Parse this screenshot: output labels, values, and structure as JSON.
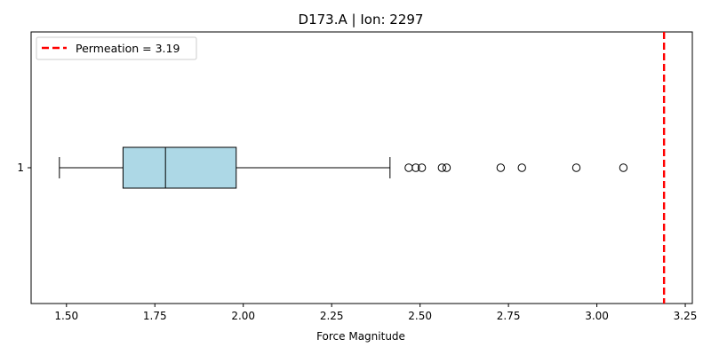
{
  "chart_data": {
    "type": "boxplot",
    "orientation": "horizontal",
    "title": "D173.A | Ion: 2297",
    "xlabel": "Force Magnitude",
    "ylabel": "",
    "xlim": [
      1.4,
      3.27
    ],
    "xticks": [
      1.5,
      1.75,
      2.0,
      2.25,
      2.5,
      2.75,
      3.0,
      3.25
    ],
    "xtick_labels": [
      "1.50",
      "1.75",
      "2.00",
      "2.25",
      "2.50",
      "2.75",
      "3.00",
      "3.25"
    ],
    "yticks": [
      1
    ],
    "ytick_labels": [
      "1"
    ],
    "grid": false,
    "box": {
      "category": "1",
      "whisker_low": 1.48,
      "q1": 1.66,
      "median": 1.78,
      "q3": 1.98,
      "whisker_high": 2.415,
      "outliers": [
        2.468,
        2.488,
        2.505,
        2.562,
        2.575,
        2.728,
        2.788,
        2.942,
        3.075
      ],
      "fill_color": "#add8e6",
      "edge_color": "#000000"
    },
    "reference_line": {
      "value": 3.19,
      "label": "Permeation = 3.19",
      "color": "#ff0000",
      "style": "dashed"
    },
    "legend": {
      "placement": "top-left"
    }
  }
}
